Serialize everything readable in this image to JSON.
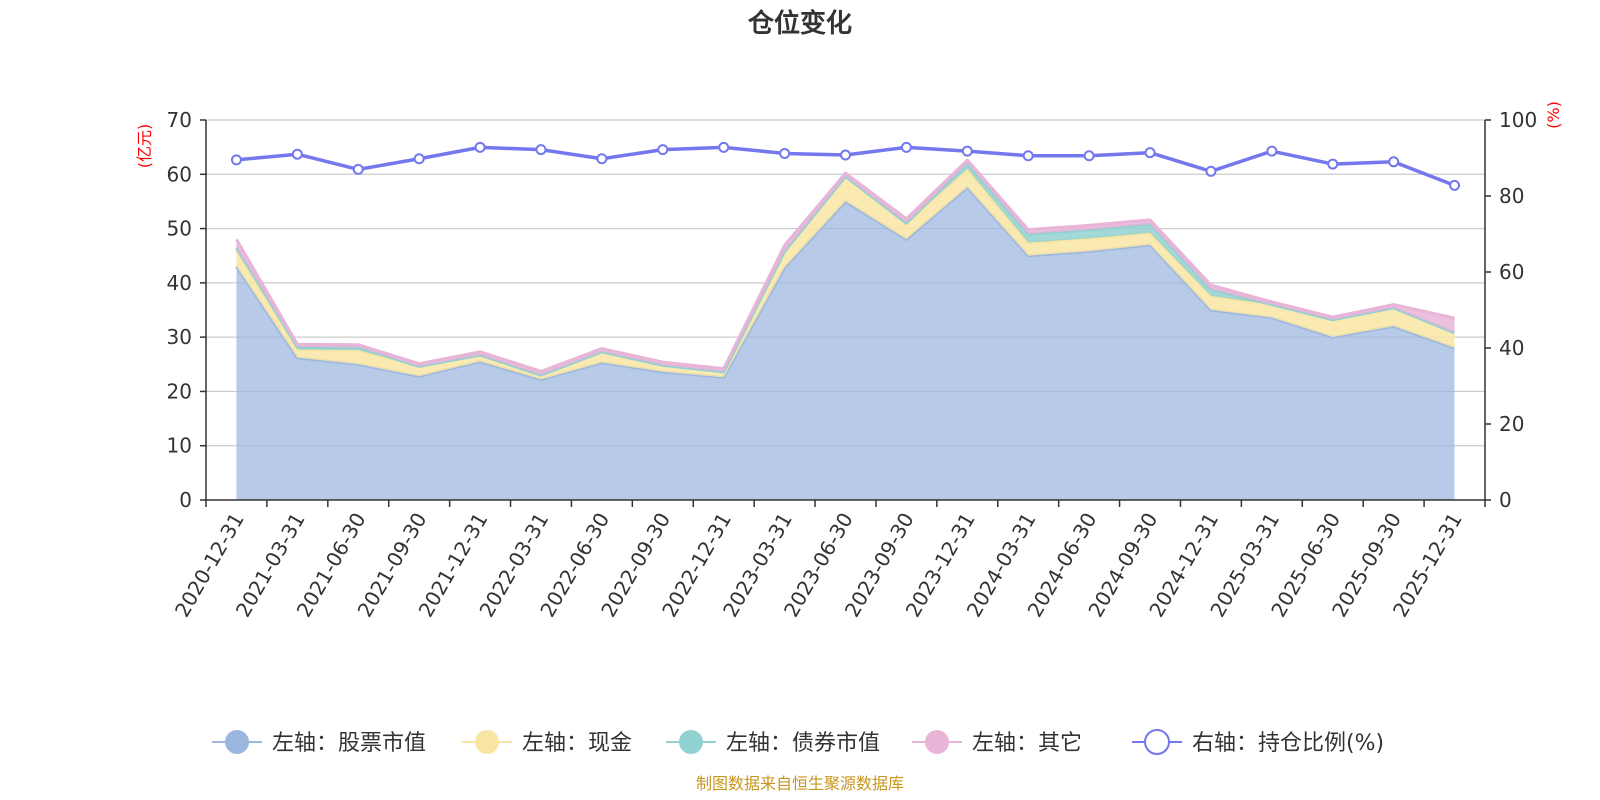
{
  "chart_data": {
    "type": "area",
    "title": "仓位变化",
    "source": "制图数据来自恒生聚源数据库",
    "left_unit": "(亿元)",
    "right_unit": "(%)",
    "left_ylim": [
      0,
      70
    ],
    "left_ticks": [
      "0",
      "10",
      "20",
      "30",
      "40",
      "50",
      "60",
      "70"
    ],
    "right_ylim": [
      0,
      100
    ],
    "right_ticks": [
      "0",
      "20",
      "40",
      "60",
      "80",
      "100"
    ],
    "grid": true,
    "legend_position": "bottom",
    "categories": [
      "2020-12-31",
      "2021-03-31",
      "2021-06-30",
      "2021-09-30",
      "2021-12-31",
      "2022-03-31",
      "2022-06-30",
      "2022-09-30",
      "2022-12-31",
      "2023-03-31",
      "2023-06-30",
      "2023-09-30",
      "2023-12-31",
      "2024-03-31",
      "2024-06-30",
      "2024-09-30",
      "2024-12-31",
      "2025-03-31",
      "2025-06-30",
      "2025-09-30",
      "2025-12-31"
    ],
    "stacked_series": [
      {
        "name": "左轴：股票市值",
        "color": "#9bb7e0",
        "values": [
          43.0,
          26.2,
          25.0,
          22.8,
          25.5,
          22.2,
          25.3,
          23.6,
          22.6,
          42.8,
          55.0,
          48.0,
          57.6,
          45.0,
          45.8,
          47.0,
          35.0,
          33.6,
          30.0,
          32.0,
          28.0
        ]
      },
      {
        "name": "左轴：现金",
        "color": "#f9e5a3",
        "values": [
          3.0,
          1.5,
          2.6,
          1.8,
          1.2,
          0.8,
          2.0,
          1.2,
          1.0,
          3.0,
          4.6,
          3.0,
          3.4,
          2.4,
          2.4,
          2.2,
          2.6,
          2.4,
          3.2,
          3.4,
          2.8
        ]
      },
      {
        "name": "左轴：债券市值",
        "color": "#92d1d1",
        "values": [
          0.5,
          0.5,
          0.5,
          0,
          0,
          0,
          0,
          0,
          0,
          0,
          0,
          0,
          1.0,
          1.6,
          1.6,
          1.6,
          1.2,
          0,
          0,
          0,
          0
        ]
      },
      {
        "name": "左轴：其它",
        "color": "#e8b4d8",
        "values": [
          1.5,
          0.5,
          0.5,
          0.5,
          0.6,
          0.7,
          0.6,
          0.6,
          0.6,
          1.1,
          0.6,
          0.8,
          0.6,
          0.8,
          0.8,
          0.8,
          0.8,
          0.5,
          0.5,
          0.6,
          2.7
        ]
      }
    ],
    "line_series": {
      "name": "右轴：持仓比例(%)",
      "color": "#7378ee",
      "values": [
        89.5,
        91.0,
        87.0,
        89.8,
        92.8,
        92.2,
        89.8,
        92.2,
        92.8,
        91.2,
        90.8,
        92.8,
        91.8,
        90.6,
        90.6,
        91.4,
        86.5,
        91.8,
        88.4,
        89.0,
        82.8
      ]
    }
  }
}
